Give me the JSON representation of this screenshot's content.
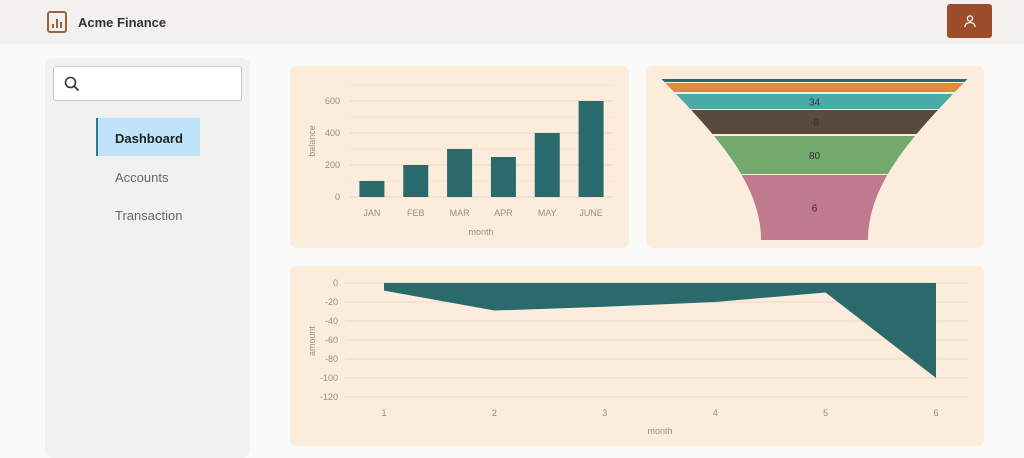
{
  "header": {
    "title": "Acme Finance",
    "logo_icon": "bar-chart-document-icon",
    "user_icon": "user-icon"
  },
  "sidebar": {
    "search": {
      "placeholder": "",
      "value": ""
    },
    "items": [
      {
        "label": "Dashboard",
        "active": true
      },
      {
        "label": "Accounts",
        "active": false
      },
      {
        "label": "Transaction",
        "active": false
      }
    ]
  },
  "colors": {
    "accent": "#2b6a6c",
    "brand": "#9c4e2c",
    "card": "#fbecdc",
    "nav_active": "#bfe4f9"
  },
  "chart_data": [
    {
      "type": "bar",
      "title": "",
      "xlabel": "month",
      "ylabel": "balance",
      "categories": [
        "JAN",
        "FEB",
        "MAR",
        "APR",
        "MAY",
        "JUNE"
      ],
      "values": [
        100,
        200,
        300,
        250,
        400,
        600
      ],
      "ylim": [
        0,
        700
      ],
      "yticks": [
        "0",
        "200",
        "400",
        "600"
      ],
      "grid": true
    },
    {
      "type": "funnel",
      "segments": [
        {
          "label": null,
          "color": "#2b6a6c"
        },
        {
          "label": null,
          "color": "#e08a3a"
        },
        {
          "label": "34",
          "color": "#4aaaa5"
        },
        {
          "label": "-8",
          "color": "#594a40"
        },
        {
          "label": "80",
          "color": "#74a96d"
        },
        {
          "label": "6",
          "color": "#bf7b8d"
        }
      ]
    },
    {
      "type": "area",
      "title": "",
      "xlabel": "month",
      "ylabel": "amount",
      "x": [
        1,
        2,
        3,
        4,
        5,
        6
      ],
      "xticks": [
        "1",
        "2",
        "3",
        "4",
        "5",
        "6"
      ],
      "values": [
        -8,
        -29,
        -25,
        -20,
        -10,
        -100
      ],
      "ylim": [
        -120,
        0
      ],
      "yticks": [
        "0",
        "-20",
        "-40",
        "-60",
        "-80",
        "-100",
        "-120"
      ],
      "grid": true
    }
  ]
}
